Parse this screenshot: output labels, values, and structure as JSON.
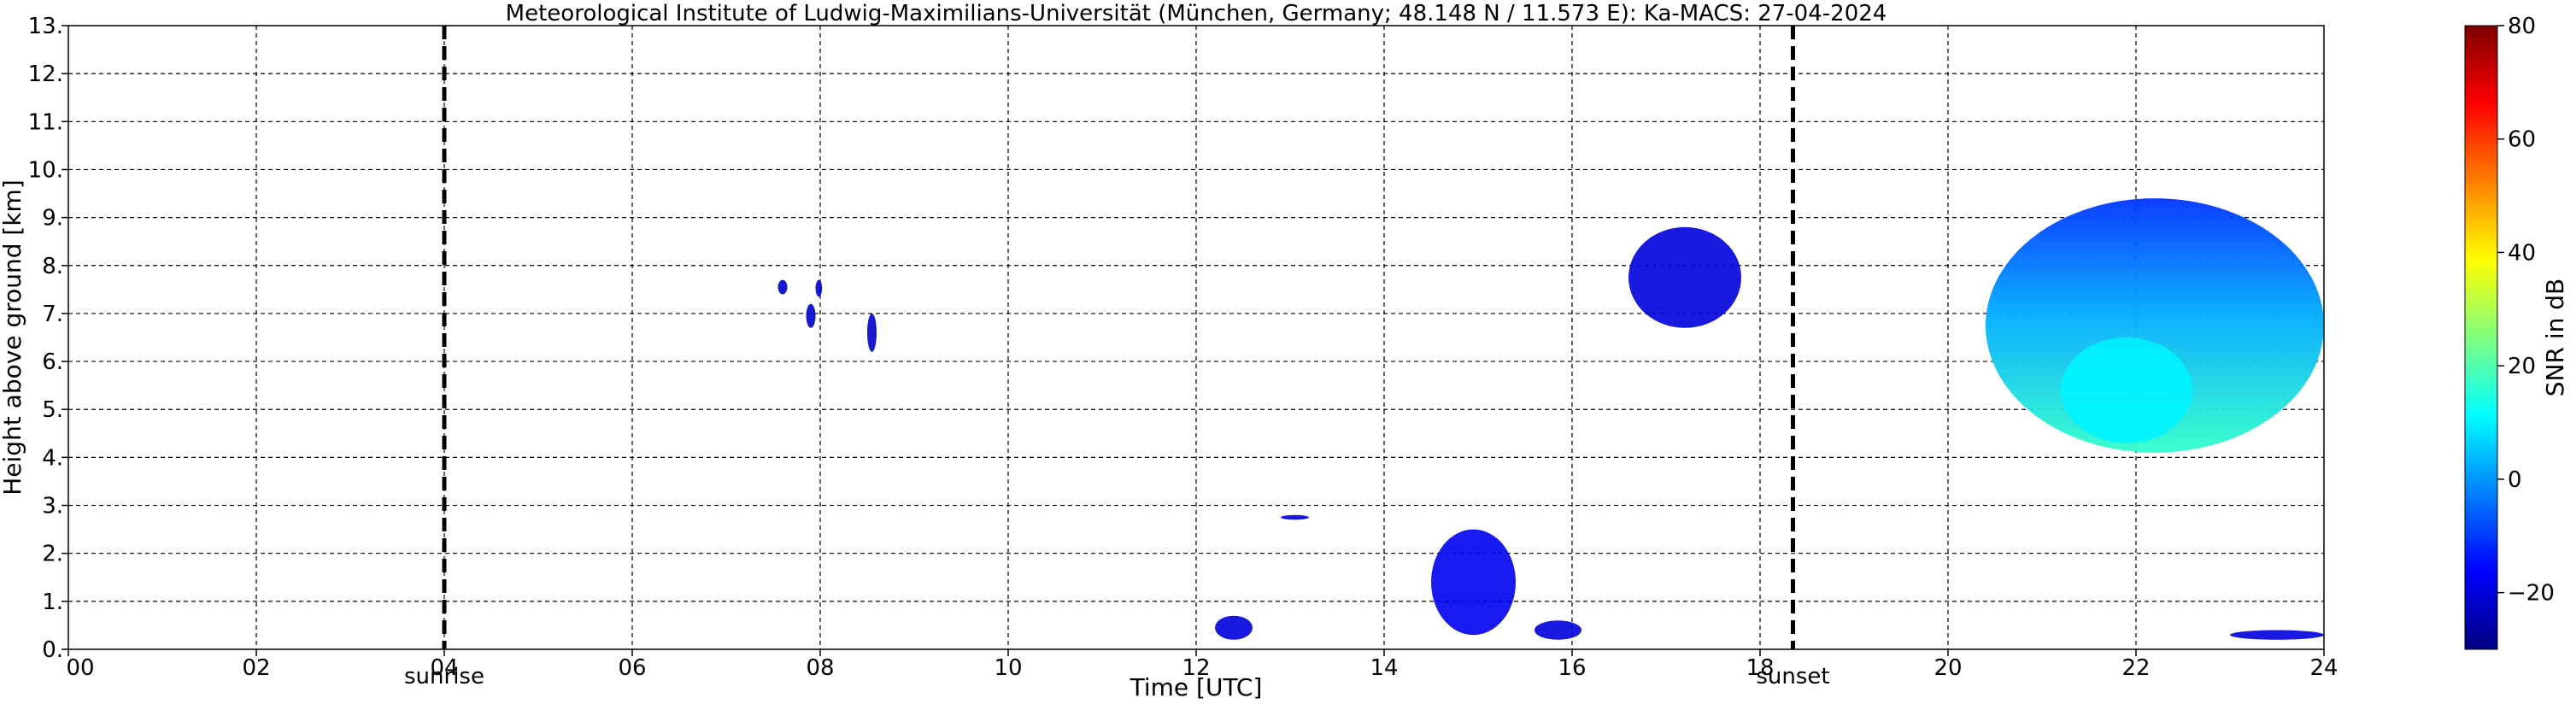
{
  "chart_data": {
    "type": "heatmap",
    "title": "Meteorological Institute of Ludwig-Maximilians-Universität (München, Germany; 48.148 N / 11.573 E):    Ka-MACS: 27-04-2024",
    "xlabel": "Time [UTC]",
    "ylabel": "Height above ground [km]",
    "xlim": [
      0,
      24
    ],
    "ylim": [
      0,
      13
    ],
    "grid": true,
    "x_ticks": [
      {
        "v": 0,
        "label": "00"
      },
      {
        "v": 2,
        "label": "02"
      },
      {
        "v": 4,
        "label": "04"
      },
      {
        "v": 6,
        "label": "06"
      },
      {
        "v": 8,
        "label": "08"
      },
      {
        "v": 10,
        "label": "10"
      },
      {
        "v": 12,
        "label": "12"
      },
      {
        "v": 14,
        "label": "14"
      },
      {
        "v": 16,
        "label": "16"
      },
      {
        "v": 18,
        "label": "18"
      },
      {
        "v": 20,
        "label": "20"
      },
      {
        "v": 22,
        "label": "22"
      },
      {
        "v": 24,
        "label": "24"
      }
    ],
    "y_ticks": [
      {
        "v": 0,
        "label": "0."
      },
      {
        "v": 1,
        "label": "1."
      },
      {
        "v": 2,
        "label": "2."
      },
      {
        "v": 3,
        "label": "3."
      },
      {
        "v": 4,
        "label": "4."
      },
      {
        "v": 5,
        "label": "5."
      },
      {
        "v": 6,
        "label": "6."
      },
      {
        "v": 7,
        "label": "7."
      },
      {
        "v": 8,
        "label": "8."
      },
      {
        "v": 9,
        "label": "9."
      },
      {
        "v": 10,
        "label": "10."
      },
      {
        "v": 11,
        "label": "11."
      },
      {
        "v": 12,
        "label": "12."
      },
      {
        "v": 13,
        "label": "13."
      }
    ],
    "events": [
      {
        "label": "sunrise",
        "time": 4.0
      },
      {
        "label": "sunset",
        "time": 18.35
      }
    ],
    "colorbar": {
      "label": "SNR in dB",
      "range": [
        -30,
        80
      ],
      "ticks": [
        {
          "v": -20,
          "label": "−20"
        },
        {
          "v": 0,
          "label": "0"
        },
        {
          "v": 20,
          "label": "20"
        },
        {
          "v": 40,
          "label": "40"
        },
        {
          "v": 60,
          "label": "60"
        },
        {
          "v": 80,
          "label": "80"
        }
      ]
    },
    "echo_regions": [
      {
        "name": "echo-morning-1",
        "t": [
          7.55,
          7.65
        ],
        "h": [
          7.4,
          7.7
        ],
        "snr": -22
      },
      {
        "name": "echo-morning-2",
        "t": [
          7.85,
          7.95
        ],
        "h": [
          6.7,
          7.2
        ],
        "snr": -22
      },
      {
        "name": "echo-morning-3",
        "t": [
          7.95,
          8.02
        ],
        "h": [
          7.35,
          7.7
        ],
        "snr": -22
      },
      {
        "name": "echo-morning-4",
        "t": [
          8.5,
          8.6
        ],
        "h": [
          6.2,
          7.0
        ],
        "snr": -22
      },
      {
        "name": "echo-afternoon-high",
        "t": [
          16.6,
          17.8
        ],
        "h": [
          6.7,
          8.8
        ],
        "snr": -20
      },
      {
        "name": "echo-low-1",
        "t": [
          12.2,
          12.6
        ],
        "h": [
          0.2,
          0.7
        ],
        "snr": -20
      },
      {
        "name": "echo-low-2",
        "t": [
          12.9,
          13.2
        ],
        "h": [
          2.7,
          2.8
        ],
        "snr": -20
      },
      {
        "name": "echo-low-3",
        "t": [
          14.5,
          15.4
        ],
        "h": [
          0.3,
          2.5
        ],
        "snr": -18
      },
      {
        "name": "echo-low-4",
        "t": [
          15.6,
          16.1
        ],
        "h": [
          0.2,
          0.6
        ],
        "snr": -20
      },
      {
        "name": "echo-low-5",
        "t": [
          23.0,
          24.0
        ],
        "h": [
          0.2,
          0.4
        ],
        "snr": -20
      },
      {
        "name": "echo-evening-cloud",
        "t": [
          20.4,
          24.0
        ],
        "h": [
          4.1,
          9.4
        ],
        "snr": 0
      },
      {
        "name": "echo-evening-core",
        "t": [
          21.2,
          22.6
        ],
        "h": [
          4.3,
          6.5
        ],
        "snr": 10
      }
    ]
  }
}
